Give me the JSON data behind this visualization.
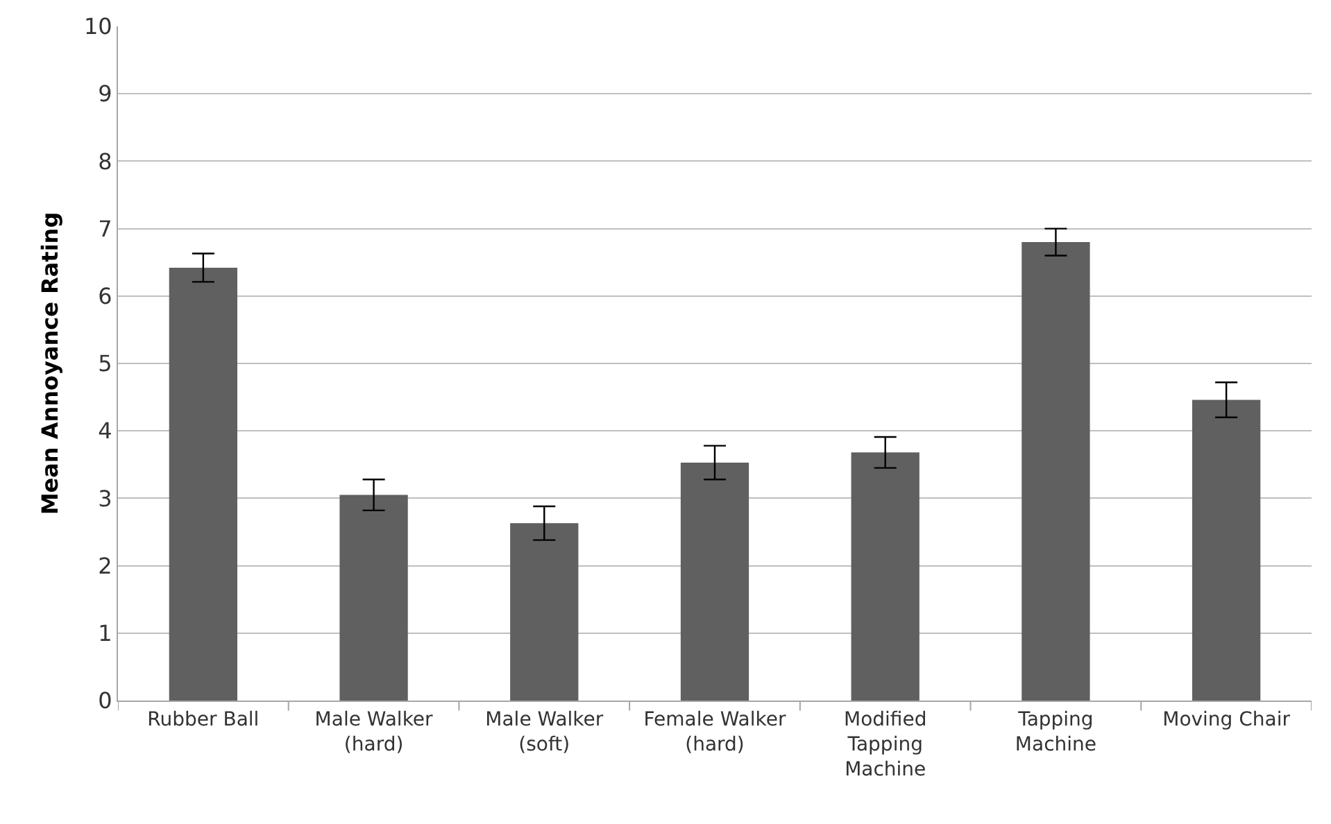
{
  "chart_data": {
    "type": "bar",
    "ylabel": "Mean Annoyance Rating",
    "categories": [
      "Rubber Ball",
      "Male Walker (hard)",
      "Male Walker (soft)",
      "Female Walker (hard)",
      "Modified Tapping Machine",
      "Tapping Machine",
      "Moving Chair"
    ],
    "values": [
      6.42,
      3.05,
      2.63,
      3.53,
      3.68,
      6.8,
      4.46
    ],
    "errors": [
      0.21,
      0.23,
      0.25,
      0.25,
      0.23,
      0.2,
      0.26
    ],
    "color": "#606060",
    "ylim": [
      0,
      10
    ],
    "yticks": [
      0,
      1,
      2,
      3,
      4,
      5,
      6,
      7,
      8,
      9,
      10
    ],
    "grid": "y"
  }
}
